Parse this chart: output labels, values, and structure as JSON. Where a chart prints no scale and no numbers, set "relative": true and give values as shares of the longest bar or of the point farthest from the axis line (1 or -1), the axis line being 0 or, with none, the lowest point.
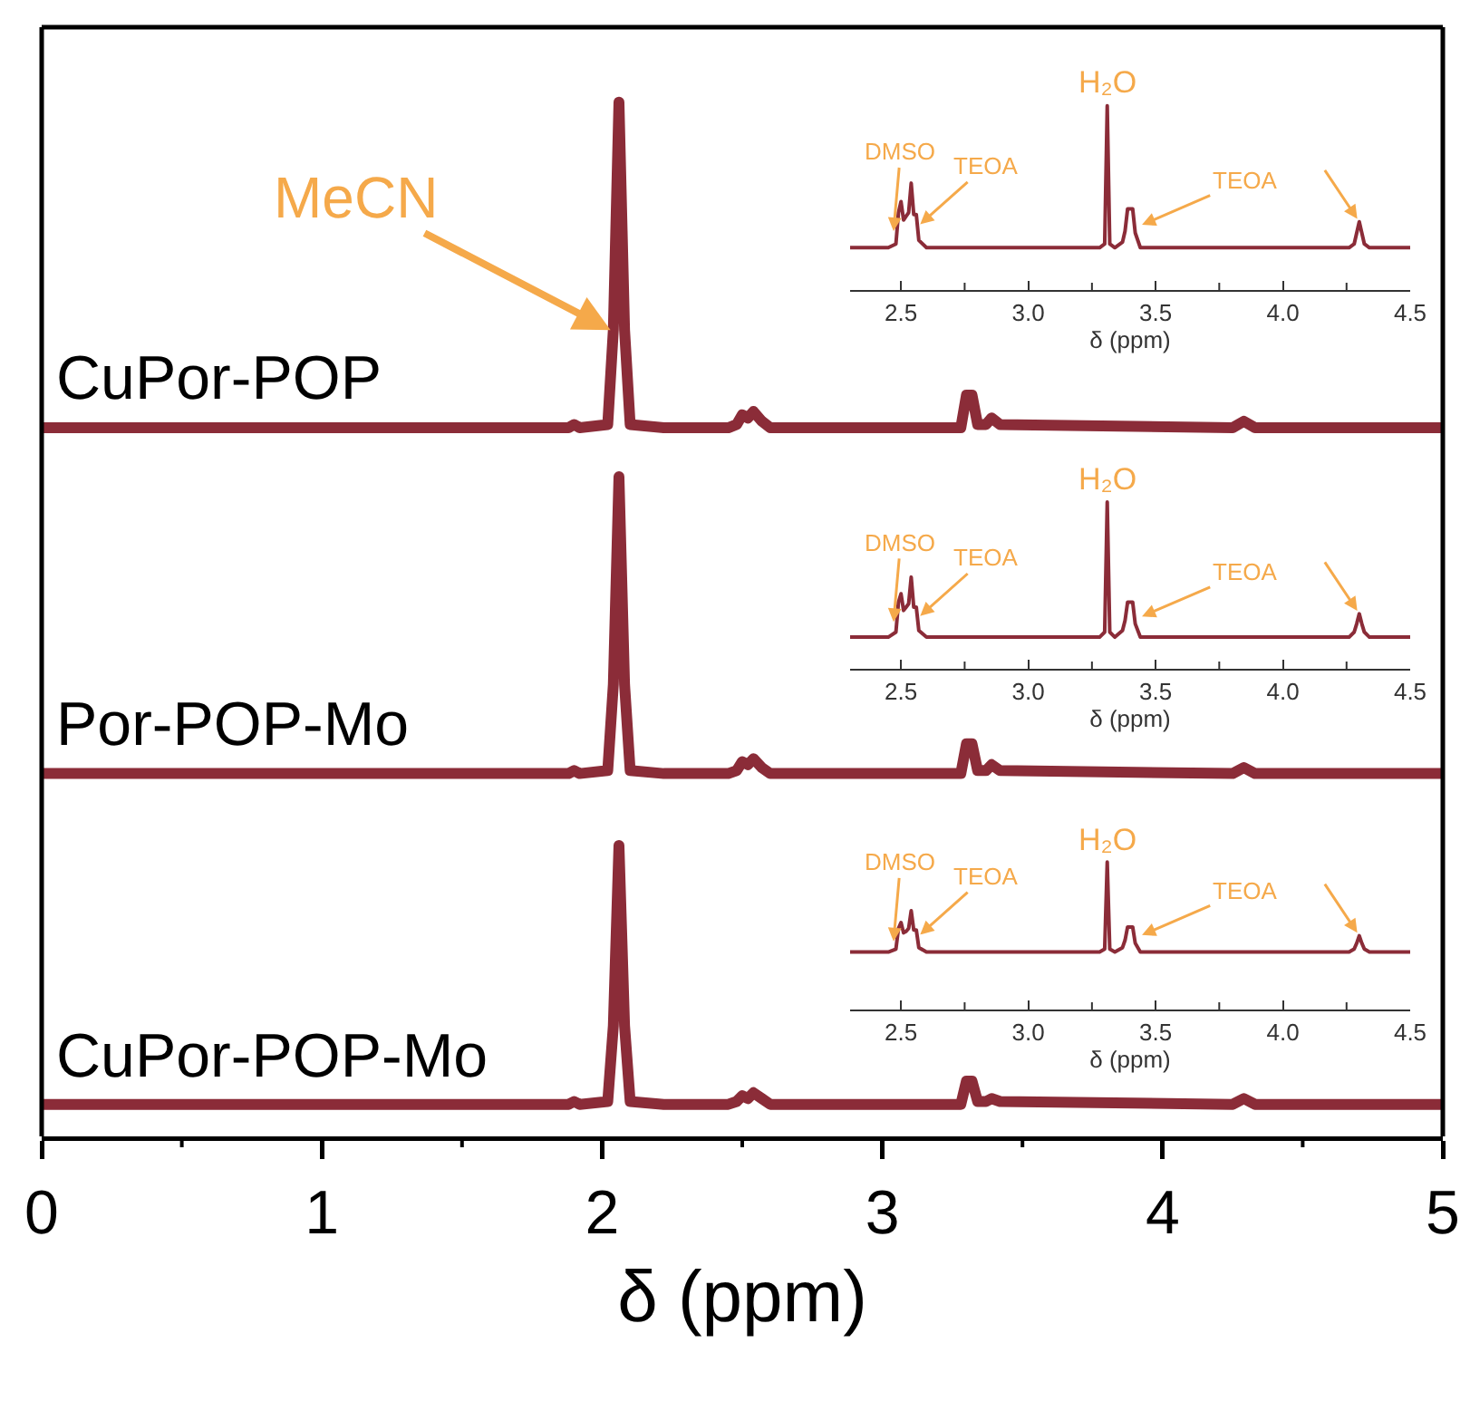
{
  "chart_data": [
    {
      "type": "line",
      "relative": true,
      "tick_labels": false,
      "xlim": [
        0,
        5
      ],
      "x": [
        0,
        1.88,
        1.9,
        1.92,
        2.02,
        2.04,
        2.06,
        2.08,
        2.1,
        2.22,
        2.45,
        2.48,
        2.5,
        2.52,
        2.54,
        2.57,
        2.6,
        3.28,
        3.3,
        3.31,
        3.32,
        3.34,
        3.37,
        3.39,
        3.42,
        4.25,
        4.29,
        4.33,
        5
      ],
      "series": [
        {
          "name": "CuPor-POP",
          "color": "#8b2c38",
          "values": [
            0,
            0,
            0.01,
            0,
            0.01,
            0.3,
            1,
            0.3,
            0.01,
            0,
            0,
            0.01,
            0.04,
            0.03,
            0.05,
            0.02,
            0,
            0,
            0.1,
            0.1,
            0.1,
            0.01,
            0.01,
            0.03,
            0.01,
            0,
            0.02,
            0,
            0
          ]
        }
      ],
      "annotations": [
        {
          "text": "MeCN",
          "x": 2.03,
          "y": 0.3
        }
      ]
    },
    {
      "type": "line",
      "relative": true,
      "tick_labels": false,
      "xlim": [
        0,
        5
      ],
      "x": [
        0,
        1.88,
        1.9,
        1.92,
        2.02,
        2.04,
        2.06,
        2.08,
        2.1,
        2.22,
        2.45,
        2.48,
        2.5,
        2.52,
        2.54,
        2.57,
        2.6,
        3.28,
        3.3,
        3.31,
        3.32,
        3.34,
        3.37,
        3.39,
        3.42,
        4.25,
        4.29,
        4.33,
        5
      ],
      "series": [
        {
          "name": "Por-POP-Mo",
          "color": "#8b2c38",
          "values": [
            0,
            0,
            0.01,
            0,
            0.01,
            0.3,
            1,
            0.3,
            0.01,
            0,
            0,
            0.01,
            0.04,
            0.03,
            0.05,
            0.02,
            0,
            0,
            0.1,
            0.1,
            0.1,
            0.01,
            0.01,
            0.03,
            0.01,
            0,
            0.02,
            0,
            0
          ]
        }
      ]
    },
    {
      "type": "line",
      "relative": true,
      "tick_labels": "x",
      "xlabel": "δ (ppm)",
      "xlim": [
        0,
        5
      ],
      "xticks": [
        0,
        {
          "value": 0.5,
          "label": null
        },
        1,
        {
          "value": 1.5,
          "label": null
        },
        2,
        {
          "value": 2.5,
          "label": null
        },
        3,
        {
          "value": 3.5,
          "label": null
        },
        4,
        {
          "value": 4.5,
          "label": null
        },
        5
      ],
      "x": [
        0,
        1.88,
        1.9,
        1.92,
        2.02,
        2.04,
        2.06,
        2.08,
        2.1,
        2.22,
        2.45,
        2.48,
        2.5,
        2.52,
        2.54,
        2.57,
        2.6,
        3.28,
        3.3,
        3.31,
        3.32,
        3.34,
        3.37,
        3.39,
        3.42,
        4.25,
        4.29,
        4.33,
        5
      ],
      "series": [
        {
          "name": "CuPor-POP-Mo",
          "color": "#8b2c38",
          "values": [
            0.11,
            0.11,
            0.12,
            0.11,
            0.12,
            0.38,
            1,
            0.38,
            0.12,
            0.11,
            0.11,
            0.12,
            0.14,
            0.13,
            0.15,
            0.13,
            0.11,
            0.11,
            0.19,
            0.19,
            0.19,
            0.12,
            0.12,
            0.13,
            0.12,
            0.11,
            0.13,
            0.11,
            0.11
          ]
        }
      ]
    },
    {
      "type": "line",
      "relative": true,
      "tick_labels": "x",
      "xlabel": "δ (ppm)",
      "xlim": [
        2.3,
        4.5
      ],
      "xticks": [
        2.5,
        {
          "value": 2.75,
          "label": null
        },
        {
          "value": 3,
          "label": "3.0"
        },
        {
          "value": 3.25,
          "label": null
        },
        3.5,
        {
          "value": 3.75,
          "label": null
        },
        {
          "value": 4,
          "label": "4.0"
        },
        {
          "value": 4.25,
          "label": null
        },
        4.5
      ],
      "x": [
        2.3,
        2.45,
        2.48,
        2.49,
        2.5,
        2.51,
        2.52,
        2.53,
        2.54,
        2.55,
        2.56,
        2.57,
        2.6,
        3.28,
        3.3,
        3.31,
        3.32,
        3.34,
        3.37,
        3.38,
        3.39,
        3.4,
        3.41,
        3.42,
        3.44,
        4.26,
        4.28,
        4.29,
        4.3,
        4.31,
        4.32,
        4.34,
        4.5
      ],
      "series": [
        {
          "color": "#8b2c38",
          "values": [
            0.23,
            0.23,
            0.25,
            0.42,
            0.48,
            0.38,
            0.4,
            0.42,
            0.58,
            0.41,
            0.41,
            0.27,
            0.23,
            0.23,
            0.25,
            1,
            0.25,
            0.23,
            0.26,
            0.32,
            0.44,
            0.44,
            0.44,
            0.31,
            0.23,
            0.23,
            0.25,
            0.31,
            0.37,
            0.31,
            0.25,
            0.23,
            0.23
          ]
        }
      ],
      "annotations": [
        {
          "text": "H₂O",
          "x": 3.31,
          "y": 1
        },
        {
          "text": "DMSO",
          "x": 2.47,
          "y": 0.31
        },
        {
          "text": "TEOA",
          "x": 2.57,
          "y": 0.35
        },
        {
          "text": "TEOA",
          "x": 3.44,
          "y": 0.35
        }
      ]
    },
    {
      "type": "line",
      "relative": true,
      "tick_labels": "x",
      "xlabel": "δ (ppm)",
      "xlim": [
        2.3,
        4.5
      ],
      "xticks": [
        2.5,
        {
          "value": 2.75,
          "label": null
        },
        {
          "value": 3,
          "label": "3.0"
        },
        {
          "value": 3.25,
          "label": null
        },
        3.5,
        {
          "value": 3.75,
          "label": null
        },
        {
          "value": 4,
          "label": "4.0"
        },
        {
          "value": 4.25,
          "label": null
        },
        4.5
      ],
      "x": [
        2.3,
        2.45,
        2.48,
        2.49,
        2.5,
        2.51,
        2.52,
        2.53,
        2.54,
        2.55,
        2.56,
        2.57,
        2.6,
        3.28,
        3.3,
        3.31,
        3.32,
        3.34,
        3.37,
        3.38,
        3.39,
        3.4,
        3.41,
        3.42,
        3.44,
        4.26,
        4.28,
        4.29,
        4.3,
        4.31,
        4.32,
        4.34,
        4.5
      ],
      "series": [
        {
          "color": "#8b2c38",
          "values": [
            0.19,
            0.19,
            0.22,
            0.4,
            0.45,
            0.35,
            0.37,
            0.39,
            0.55,
            0.37,
            0.37,
            0.23,
            0.19,
            0.19,
            0.22,
            1,
            0.22,
            0.19,
            0.23,
            0.29,
            0.4,
            0.4,
            0.4,
            0.27,
            0.19,
            0.19,
            0.22,
            0.27,
            0.33,
            0.27,
            0.22,
            0.19,
            0.19
          ]
        }
      ],
      "annotations": [
        {
          "text": "H₂O",
          "x": 3.31,
          "y": 1
        },
        {
          "text": "DMSO",
          "x": 2.47,
          "y": 0.27
        },
        {
          "text": "TEOA",
          "x": 2.57,
          "y": 0.31
        },
        {
          "text": "TEOA",
          "x": 3.44,
          "y": 0.31
        }
      ]
    },
    {
      "type": "line",
      "relative": true,
      "tick_labels": "x",
      "xlabel": "δ (ppm)",
      "xlim": [
        2.3,
        4.5
      ],
      "xticks": [
        2.5,
        {
          "value": 2.75,
          "label": null
        },
        {
          "value": 3,
          "label": "3.0"
        },
        {
          "value": 3.25,
          "label": null
        },
        3.5,
        {
          "value": 3.75,
          "label": null
        },
        {
          "value": 4,
          "label": "4.0"
        },
        {
          "value": 4.25,
          "label": null
        },
        4.5
      ],
      "x": [
        2.3,
        2.45,
        2.48,
        2.49,
        2.5,
        2.51,
        2.52,
        2.53,
        2.54,
        2.55,
        2.56,
        2.57,
        2.6,
        3.28,
        3.3,
        3.31,
        3.32,
        3.34,
        3.37,
        3.38,
        3.39,
        3.4,
        3.41,
        3.42,
        3.44,
        4.26,
        4.28,
        4.29,
        4.3,
        4.31,
        4.32,
        4.34,
        4.5
      ],
      "series": [
        {
          "color": "#8b2c38",
          "values": [
            0.39,
            0.39,
            0.41,
            0.55,
            0.59,
            0.52,
            0.53,
            0.55,
            0.67,
            0.54,
            0.54,
            0.42,
            0.39,
            0.39,
            0.41,
            1,
            0.41,
            0.39,
            0.42,
            0.47,
            0.56,
            0.56,
            0.56,
            0.45,
            0.39,
            0.39,
            0.41,
            0.45,
            0.5,
            0.45,
            0.41,
            0.39,
            0.39
          ]
        }
      ],
      "annotations": [
        {
          "text": "H₂O",
          "x": 3.31,
          "y": 1
        },
        {
          "text": "DMSO",
          "x": 2.47,
          "y": 0.45
        },
        {
          "text": "TEOA",
          "x": 2.57,
          "y": 0.5
        },
        {
          "text": "TEOA",
          "x": 3.44,
          "y": 0.5
        }
      ]
    }
  ]
}
